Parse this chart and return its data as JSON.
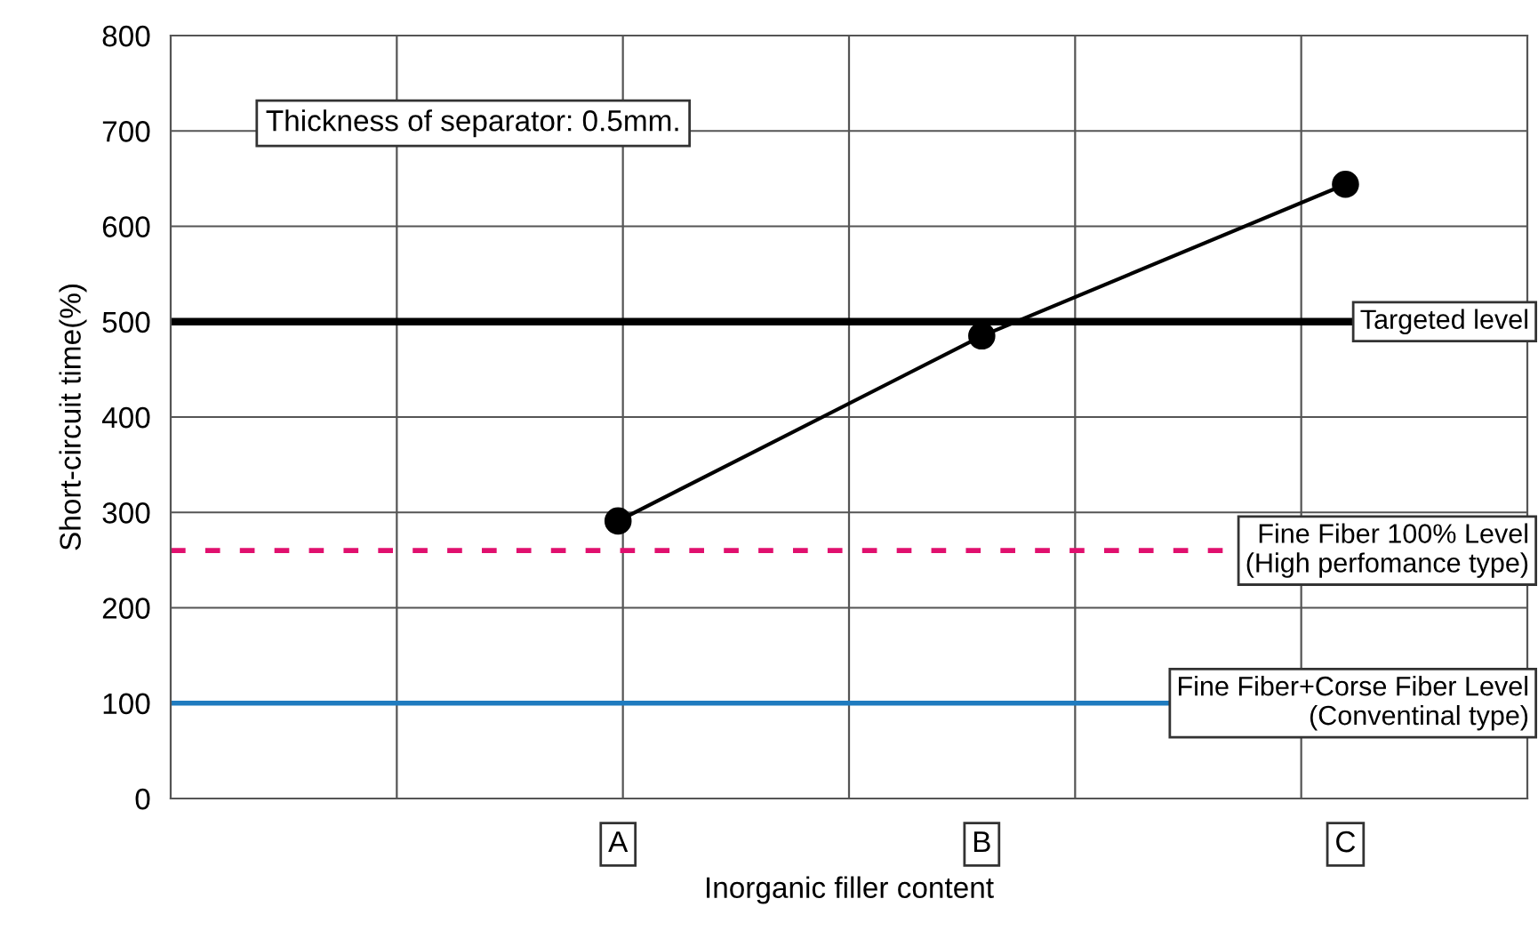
{
  "chart_data": {
    "type": "line",
    "xlabel": "Inorganic filler content",
    "ylabel": "Short-circuit time(%)",
    "categories": [
      "A",
      "B",
      "C"
    ],
    "series": [
      {
        "color": "#000000",
        "values": [
          291,
          485,
          644
        ]
      }
    ],
    "marker": "circle",
    "line_style": "solid",
    "ylim": [
      0,
      800
    ],
    "yticks": [
      0,
      100,
      200,
      300,
      400,
      500,
      600,
      700,
      800
    ],
    "grid": true,
    "ref_lines": [
      {
        "axis": "y",
        "value": 500,
        "label": "Targeted level",
        "color": "#000000",
        "line_style": "solid"
      },
      {
        "axis": "y",
        "value": 260,
        "label": "Fine Fiber 100% Level\n(High perfomance type)",
        "color": "#e0106e",
        "line_style": "dashed"
      },
      {
        "axis": "y",
        "value": 100,
        "label": "Fine Fiber+Corse Fiber Level\n(Conventinal type)",
        "color": "#1f7bbf",
        "line_style": "solid"
      }
    ],
    "annotations": [
      "Thickness of separator: 0.5mm."
    ]
  }
}
